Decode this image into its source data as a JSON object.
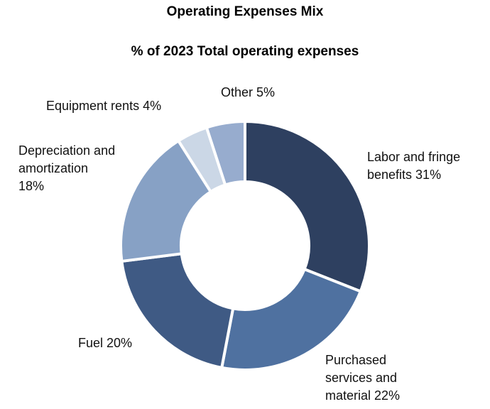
{
  "chart_data": {
    "type": "pie",
    "variant": "donut",
    "title": "Operating Expenses Mix",
    "subtitle": "% of 2023 Total operating expenses",
    "categories": [
      "Labor and fringe benefits",
      "Purchased services and material",
      "Fuel",
      "Depreciation and amortization",
      "Equipment rents",
      "Other"
    ],
    "values": [
      31,
      22,
      20,
      18,
      4,
      5
    ],
    "unit": "%",
    "labels": [
      "Labor and fringe\nbenefits 31%",
      "Purchased\nservices and\nmaterial 22%",
      "Fuel 20%",
      "Depreciation and\namortization\n18%",
      "Equipment rents 4%",
      "Other 5%"
    ],
    "colors": [
      "#2e4060",
      "#4f71a0",
      "#3f5a84",
      "#87a1c5",
      "#cbd7e6",
      "#97acce"
    ],
    "legend": "none",
    "direction": "clockwise from top"
  }
}
